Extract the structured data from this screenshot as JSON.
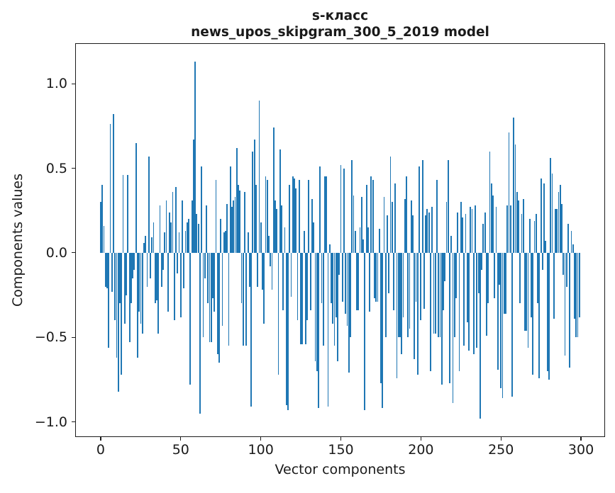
{
  "chart_data": {
    "type": "bar",
    "title": "s-класс",
    "subtitle": "news_upos_skipgram_300_5_2019 model",
    "xlabel": "Vector components",
    "ylabel": "Components values",
    "x_start": 0,
    "n_components": 300,
    "x_ticks": [
      0,
      50,
      100,
      150,
      200,
      250,
      300
    ],
    "y_ticks": [
      1.0,
      0.5,
      0.0,
      -0.5,
      -1.0
    ],
    "y_tick_labels": [
      "1.0",
      "0.5",
      "0.0",
      "−0.5",
      "−1.0"
    ],
    "xlim": [
      -15.5,
      314.6
    ],
    "ylim": [
      -1.0855,
      1.2355
    ],
    "grid": false,
    "legend": null,
    "bar_color": "#1f77b4",
    "values": [
      0.3,
      0.4,
      0.16,
      -0.2,
      -0.21,
      -0.56,
      0.76,
      -0.23,
      0.82,
      -0.4,
      -0.62,
      -0.82,
      -0.3,
      -0.72,
      0.46,
      -0.42,
      -0.25,
      0.46,
      -0.53,
      -0.3,
      -0.15,
      -0.1,
      0.65,
      -0.62,
      -0.35,
      -0.42,
      -0.48,
      0.06,
      0.1,
      -0.2,
      0.57,
      -0.15,
      0.09,
      0.18,
      -0.3,
      -0.28,
      -0.48,
      0.28,
      -0.2,
      -0.1,
      0.12,
      0.31,
      -0.35,
      0.24,
      0.18,
      0.36,
      -0.4,
      0.39,
      -0.12,
      0.12,
      -0.38,
      0.31,
      -0.21,
      0.13,
      0.18,
      0.2,
      -0.78,
      0.31,
      0.67,
      1.13,
      0.23,
      0.17,
      -0.95,
      0.51,
      -0.5,
      -0.15,
      0.28,
      -0.3,
      -0.53,
      -0.53,
      -0.27,
      -0.35,
      0.43,
      -0.6,
      -0.65,
      0.2,
      -0.43,
      0.12,
      0.13,
      0.29,
      -0.55,
      0.51,
      0.27,
      0.31,
      0.33,
      0.62,
      0.4,
      0.37,
      -0.3,
      -0.55,
      0.36,
      -0.55,
      0.12,
      -0.2,
      -0.91,
      0.6,
      0.67,
      0.4,
      -0.2,
      0.9,
      0.18,
      -0.22,
      -0.42,
      0.45,
      0.43,
      0.1,
      -0.08,
      -0.22,
      0.74,
      0.31,
      0.26,
      -0.72,
      0.61,
      0.28,
      -0.34,
      0.15,
      -0.9,
      -0.93,
      0.4,
      -0.26,
      0.45,
      0.44,
      0.38,
      -0.4,
      0.43,
      -0.54,
      -0.54,
      0.13,
      -0.54,
      -0.4,
      0.43,
      -0.34,
      0.32,
      0.18,
      -0.64,
      -0.7,
      -0.92,
      0.51,
      -0.3,
      -0.55,
      0.45,
      0.45,
      -0.91,
      0.05,
      -0.3,
      -0.42,
      -0.55,
      -0.38,
      -0.64,
      -0.13,
      0.52,
      -0.29,
      0.5,
      -0.36,
      -0.43,
      -0.71,
      -0.5,
      0.55,
      0.34,
      0.13,
      -0.34,
      -0.34,
      0.15,
      0.33,
      0.08,
      -0.93,
      0.4,
      0.15,
      -0.35,
      0.45,
      0.43,
      -0.27,
      -0.29,
      -0.29,
      0.14,
      -0.77,
      -0.92,
      0.33,
      -0.5,
      0.22,
      -0.24,
      0.57,
      0.3,
      -0.34,
      0.41,
      -0.74,
      -0.5,
      -0.5,
      -0.6,
      -0.38,
      0.32,
      0.45,
      -0.5,
      -0.45,
      0.31,
      0.22,
      -0.63,
      -0.29,
      -0.72,
      0.51,
      -0.4,
      0.55,
      -0.33,
      0.22,
      0.26,
      0.24,
      -0.7,
      0.27,
      -0.48,
      -0.48,
      0.43,
      -0.5,
      -0.5,
      -0.78,
      -0.34,
      -0.17,
      0.3,
      0.55,
      -0.77,
      0.1,
      -0.89,
      -0.5,
      -0.27,
      0.24,
      -0.7,
      0.3,
      0.21,
      -0.55,
      0.23,
      -0.41,
      -0.58,
      0.27,
      0.26,
      -0.6,
      0.28,
      -0.56,
      -0.24,
      -0.98,
      -0.1,
      0.17,
      0.24,
      -0.49,
      -0.3,
      0.6,
      0.41,
      0.34,
      -0.27,
      0.27,
      -0.69,
      -0.19,
      -0.8,
      -0.86,
      -0.36,
      -0.36,
      0.28,
      0.71,
      0.28,
      -0.85,
      0.8,
      0.64,
      0.36,
      0.31,
      -0.3,
      0.23,
      0.32,
      -0.46,
      -0.46,
      -0.56,
      0.2,
      -0.38,
      -0.72,
      0.19,
      0.23,
      -0.3,
      -0.74,
      0.44,
      -0.1,
      0.41,
      0.07,
      -0.7,
      -0.75,
      0.56,
      0.47,
      -0.39,
      0.26,
      0.26,
      0.36,
      0.4,
      0.29,
      -0.13,
      -0.61,
      -0.2,
      0.17,
      -0.68,
      0.13,
      0.05,
      -0.39,
      -0.5,
      -0.5,
      -0.38
    ]
  }
}
